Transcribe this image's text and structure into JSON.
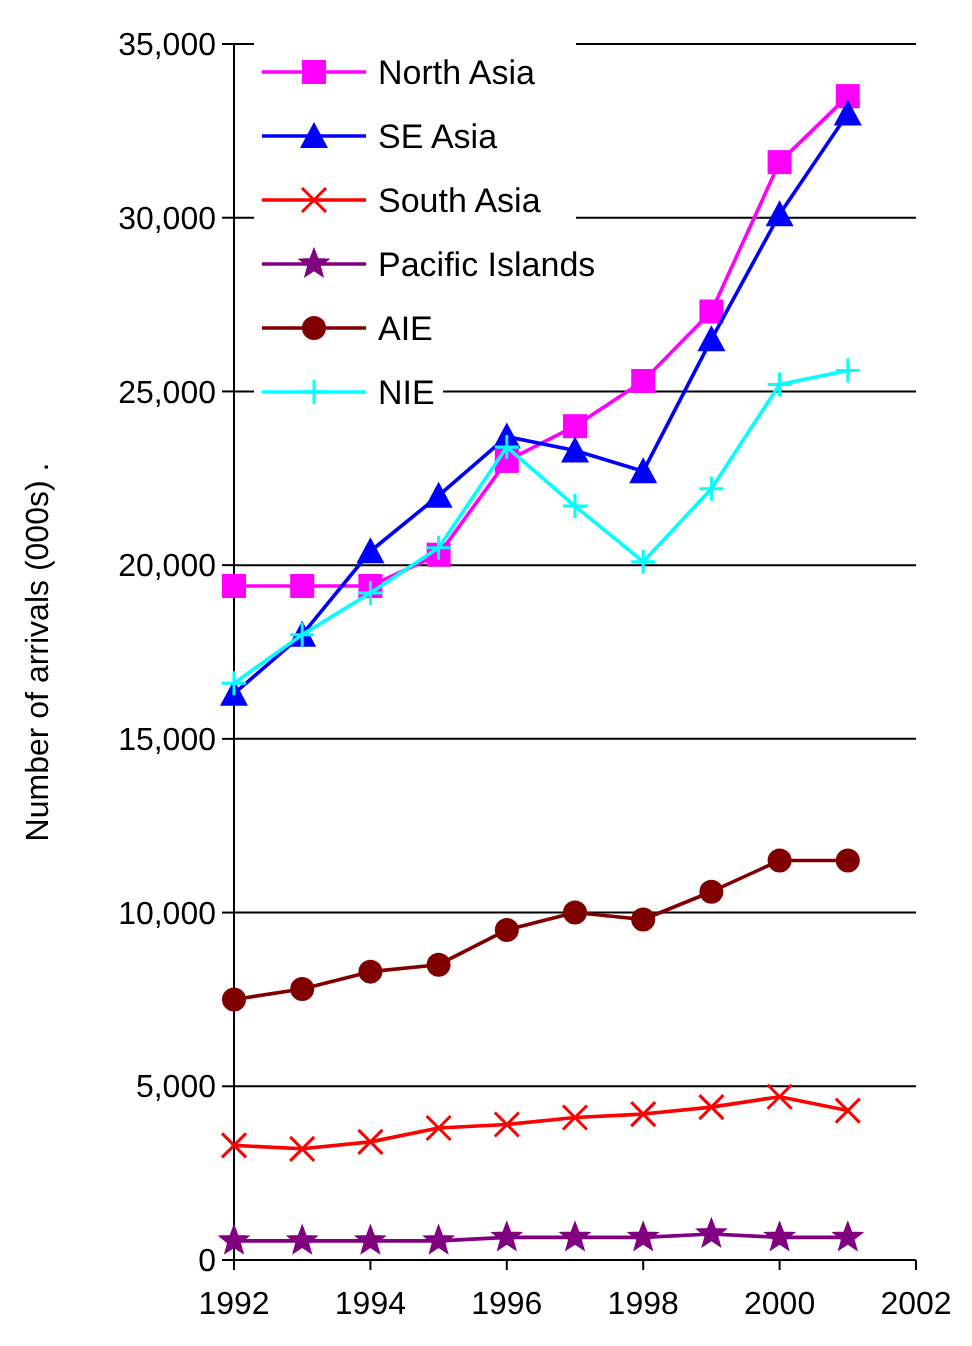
{
  "chart_data": {
    "type": "line",
    "ylabel": "Number of arrivals (000s) .",
    "x": [
      1992,
      1993,
      1994,
      1995,
      1996,
      1997,
      1998,
      1999,
      2000,
      2001
    ],
    "xlim": [
      1992,
      2002
    ],
    "xticks": [
      1992,
      1994,
      1996,
      1998,
      2000,
      2002
    ],
    "ylim": [
      0,
      35000
    ],
    "yticks": [
      {
        "value": 0,
        "label": "0"
      },
      {
        "value": 5000,
        "label": "5,000"
      },
      {
        "value": 10000,
        "label": "10,000"
      },
      {
        "value": 15000,
        "label": "15,000"
      },
      {
        "value": 20000,
        "label": "20,000"
      },
      {
        "value": 25000,
        "label": "25,000"
      },
      {
        "value": 30000,
        "label": "30,000"
      },
      {
        "value": 35000,
        "label": "35,000"
      }
    ],
    "grid": "y",
    "legend": "top left",
    "line_style": "solid",
    "series": [
      {
        "name": "North Asia",
        "color": "#ff00ff",
        "marker": "square",
        "values": [
          19400,
          19400,
          19400,
          20300,
          23000,
          24000,
          25300,
          27300,
          31600,
          33500
        ]
      },
      {
        "name": "SE Asia",
        "color": "#0000ff",
        "marker": "triangle",
        "values": [
          16300,
          18000,
          20400,
          22000,
          23700,
          23300,
          22700,
          26500,
          30100,
          33000
        ]
      },
      {
        "name": "South Asia",
        "color": "#ff0000",
        "marker": "cross",
        "values": [
          3300,
          3200,
          3400,
          3800,
          3900,
          4100,
          4200,
          4400,
          4700,
          4300
        ]
      },
      {
        "name": "Pacific Islands",
        "color": "#800080",
        "marker": "star",
        "values": [
          550,
          550,
          550,
          550,
          650,
          650,
          650,
          750,
          650,
          650
        ]
      },
      {
        "name": "AIE",
        "color": "#800000",
        "marker": "circle",
        "values": [
          7500,
          7800,
          8300,
          8500,
          9500,
          10000,
          9800,
          10600,
          11500,
          11500
        ]
      },
      {
        "name": "NIE",
        "color": "#00ffff",
        "marker": "plus",
        "values": [
          16600,
          18000,
          19200,
          20500,
          23400,
          21700,
          20100,
          22200,
          25200,
          25600
        ]
      }
    ]
  }
}
